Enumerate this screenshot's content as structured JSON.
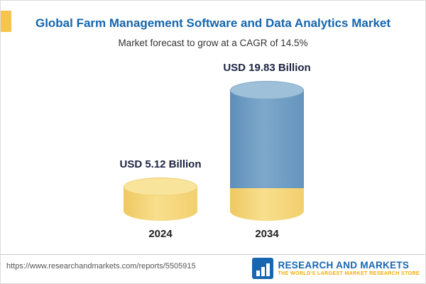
{
  "header": {
    "title": "Global Farm Management Software and Data Analytics Market",
    "subtitle": "Market forecast to grow at a CAGR of 14.5%"
  },
  "chart_data": {
    "type": "bar",
    "title": "Global Farm Management Software and Data Analytics Market",
    "subtitle": "Market forecast to grow at a CAGR of 14.5%",
    "categories": [
      "2024",
      "2034"
    ],
    "values": [
      5.12,
      19.83
    ],
    "value_labels": [
      "USD 5.12 Billion",
      "USD 19.83 Billion"
    ],
    "unit": "USD Billion",
    "cagr": "14.5%",
    "legend_position": "none",
    "grid": false,
    "colors": {
      "bar_2024": "#f5d576",
      "bar_2034_top": "#6c9ac3",
      "bar_2034_base": "#f5d576",
      "title_text": "#1565ad",
      "accent_square": "#f6c44f"
    }
  },
  "footer": {
    "url": "https://www.researchandmarkets.com/reports/5505915",
    "logo_name": "RESEARCH AND MARKETS",
    "logo_tagline": "THE WORLD'S LARGEST MARKET RESEARCH STORE"
  }
}
